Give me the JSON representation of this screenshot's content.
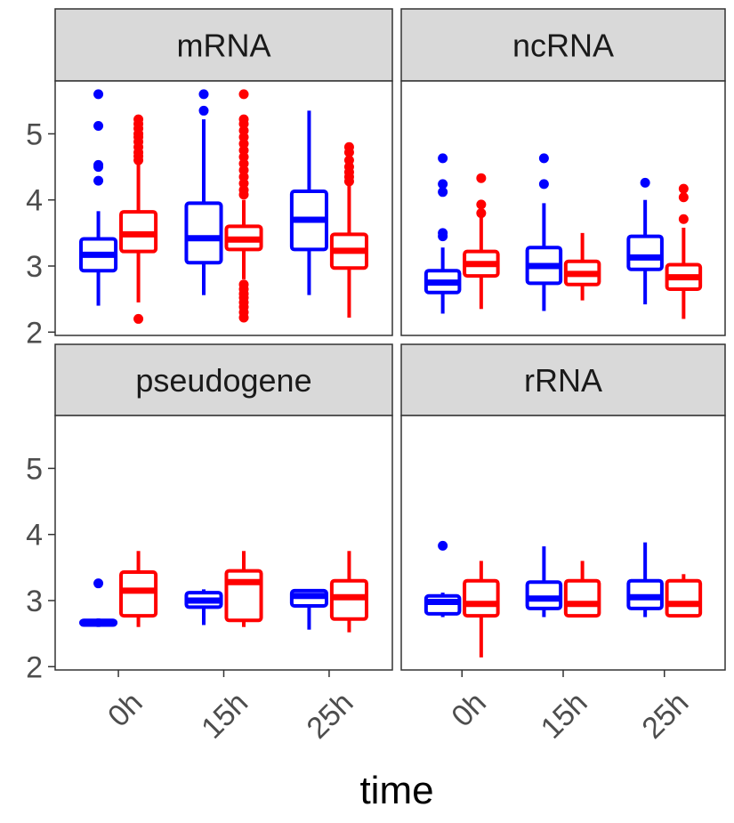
{
  "chart_data": {
    "type": "boxplot",
    "xlabel": "time",
    "ylabel": "",
    "ylim": [
      1.95,
      5.8
    ],
    "y_ticks": [
      "2",
      "3",
      "4",
      "5"
    ],
    "categories": [
      "0h",
      "15h",
      "25h"
    ],
    "group_colors": [
      "#0000ff",
      "#ff0000"
    ],
    "panels": [
      {
        "name": "mRNA",
        "boxes": [
          {
            "x": "0h",
            "group": 0,
            "min": 2.4,
            "q1": 2.93,
            "median": 3.17,
            "q3": 3.41,
            "max": 3.83,
            "outliers": [
              5.6,
              5.12,
              4.53,
              4.5,
              4.29
            ]
          },
          {
            "x": "0h",
            "group": 1,
            "min": 2.45,
            "q1": 3.22,
            "median": 3.48,
            "q3": 3.82,
            "max": 4.55,
            "outliers": [
              5.22,
              5.15,
              5.08,
              5.0,
              4.95,
              4.88,
              4.8,
              4.72,
              4.66,
              4.6,
              2.2
            ]
          },
          {
            "x": "15h",
            "group": 0,
            "min": 2.56,
            "q1": 3.05,
            "median": 3.42,
            "q3": 3.95,
            "max": 5.22,
            "outliers": [
              5.6,
              5.35
            ]
          },
          {
            "x": "15h",
            "group": 1,
            "min": 2.8,
            "q1": 3.25,
            "median": 3.4,
            "q3": 3.6,
            "max": 4.0,
            "outliers": [
              5.6,
              5.22,
              5.15,
              5.05,
              4.95,
              4.85,
              4.75,
              4.65,
              4.55,
              4.45,
              4.35,
              4.25,
              4.15,
              4.08,
              2.72,
              2.65,
              2.58,
              2.52,
              2.45,
              2.38,
              2.3,
              2.22
            ]
          },
          {
            "x": "25h",
            "group": 0,
            "min": 2.56,
            "q1": 3.25,
            "median": 3.7,
            "q3": 4.13,
            "max": 5.35,
            "outliers": []
          },
          {
            "x": "25h",
            "group": 1,
            "min": 2.22,
            "q1": 2.97,
            "median": 3.23,
            "q3": 3.48,
            "max": 4.22,
            "outliers": [
              4.8,
              4.72,
              4.6,
              4.5,
              4.42,
              4.35,
              4.28
            ]
          }
        ]
      },
      {
        "name": "ncRNA",
        "boxes": [
          {
            "x": "0h",
            "group": 0,
            "min": 2.28,
            "q1": 2.6,
            "median": 2.75,
            "q3": 2.93,
            "max": 3.28,
            "outliers": [
              4.63,
              4.24,
              4.12,
              3.5,
              3.45
            ]
          },
          {
            "x": "0h",
            "group": 1,
            "min": 2.35,
            "q1": 2.85,
            "median": 3.03,
            "q3": 3.22,
            "max": 3.75,
            "outliers": [
              4.33,
              3.93,
              3.8
            ]
          },
          {
            "x": "15h",
            "group": 0,
            "min": 2.32,
            "q1": 2.74,
            "median": 3.0,
            "q3": 3.28,
            "max": 3.95,
            "outliers": [
              4.63,
              4.24
            ]
          },
          {
            "x": "15h",
            "group": 1,
            "min": 2.48,
            "q1": 2.72,
            "median": 2.88,
            "q3": 3.07,
            "max": 3.5,
            "outliers": []
          },
          {
            "x": "25h",
            "group": 0,
            "min": 2.42,
            "q1": 2.95,
            "median": 3.13,
            "q3": 3.45,
            "max": 4.0,
            "outliers": [
              4.26
            ]
          },
          {
            "x": "25h",
            "group": 1,
            "min": 2.2,
            "q1": 2.65,
            "median": 2.83,
            "q3": 3.02,
            "max": 3.58,
            "outliers": [
              4.17,
              4.04,
              3.71
            ]
          }
        ]
      },
      {
        "name": "pseudogene",
        "boxes": [
          {
            "x": "0h",
            "group": 0,
            "min": 2.6,
            "q1": 2.63,
            "median": 2.66,
            "q3": 2.7,
            "max": 2.73,
            "outliers": [
              3.26
            ]
          },
          {
            "x": "0h",
            "group": 1,
            "min": 2.6,
            "q1": 2.77,
            "median": 3.15,
            "q3": 3.43,
            "max": 3.75,
            "outliers": []
          },
          {
            "x": "15h",
            "group": 0,
            "min": 2.63,
            "q1": 2.9,
            "median": 3.0,
            "q3": 3.12,
            "max": 3.17,
            "outliers": []
          },
          {
            "x": "15h",
            "group": 1,
            "min": 2.6,
            "q1": 2.7,
            "median": 3.28,
            "q3": 3.45,
            "max": 3.75,
            "outliers": []
          },
          {
            "x": "25h",
            "group": 0,
            "min": 2.56,
            "q1": 2.92,
            "median": 3.07,
            "q3": 3.15,
            "max": 3.17,
            "outliers": []
          },
          {
            "x": "25h",
            "group": 1,
            "min": 2.52,
            "q1": 2.72,
            "median": 3.05,
            "q3": 3.3,
            "max": 3.75,
            "outliers": []
          }
        ]
      },
      {
        "name": "rRNA",
        "boxes": [
          {
            "x": "0h",
            "group": 0,
            "min": 2.75,
            "q1": 2.8,
            "median": 2.98,
            "q3": 3.07,
            "max": 3.12,
            "outliers": [
              3.83
            ]
          },
          {
            "x": "0h",
            "group": 1,
            "min": 2.14,
            "q1": 2.77,
            "median": 2.95,
            "q3": 3.3,
            "max": 3.6,
            "outliers": []
          },
          {
            "x": "15h",
            "group": 0,
            "min": 2.75,
            "q1": 2.88,
            "median": 3.03,
            "q3": 3.28,
            "max": 3.82,
            "outliers": []
          },
          {
            "x": "15h",
            "group": 1,
            "min": 2.75,
            "q1": 2.77,
            "median": 2.95,
            "q3": 3.3,
            "max": 3.6,
            "outliers": []
          },
          {
            "x": "25h",
            "group": 0,
            "min": 2.75,
            "q1": 2.88,
            "median": 3.05,
            "q3": 3.3,
            "max": 3.88,
            "outliers": []
          },
          {
            "x": "25h",
            "group": 1,
            "min": 2.77,
            "q1": 2.77,
            "median": 2.95,
            "q3": 3.3,
            "max": 3.4,
            "outliers": []
          }
        ]
      }
    ]
  }
}
